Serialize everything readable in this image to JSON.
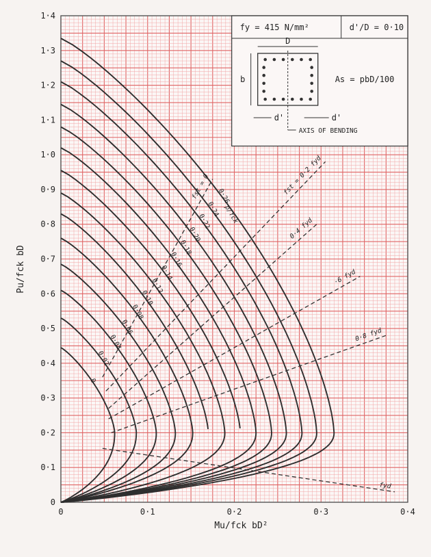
{
  "chart_data": {
    "type": "line",
    "xlabel": "Mu/fck bD²",
    "ylabel": "Pu/fck bD",
    "xlim": [
      0,
      0.4
    ],
    "ylim": [
      0,
      1.4
    ],
    "grid": true,
    "x_ticks": [
      "0",
      "0·1",
      "0·2",
      "0·3",
      "0·4"
    ],
    "y_ticks": [
      "0",
      "0·1",
      "0·2",
      "0·3",
      "0·4",
      "0·5",
      "0·6",
      "0·7",
      "0·8",
      "0·9",
      "1·0",
      "1·1",
      "1·2",
      "1·3",
      "1·4"
    ],
    "curve_family_label": "p/fck",
    "series": [
      {
        "name": "0",
        "y0": 0.445,
        "m_max": 0.062,
        "pb": 0.2
      },
      {
        "name": "0·02",
        "y0": 0.53,
        "m_max": 0.087,
        "pb": 0.2
      },
      {
        "name": "0·04",
        "y0": 0.61,
        "m_max": 0.11,
        "pb": 0.2
      },
      {
        "name": "0·06",
        "y0": 0.685,
        "m_max": 0.132,
        "pb": 0.2
      },
      {
        "name": "0·08",
        "y0": 0.76,
        "m_max": 0.152,
        "pb": 0.2
      },
      {
        "name": "0·10",
        "y0": 0.83,
        "m_max": 0.17,
        "pb": 0.2
      },
      {
        "name": "0·12",
        "y0": 0.89,
        "m_max": 0.189,
        "pb": 0.2
      },
      {
        "name": "0·14",
        "y0": 0.955,
        "m_max": 0.207,
        "pb": 0.2
      },
      {
        "name": "0·16",
        "y0": 1.02,
        "m_max": 0.225,
        "pb": 0.2
      },
      {
        "name": "0·18",
        "y0": 1.08,
        "m_max": 0.243,
        "pb": 0.2
      },
      {
        "name": "0·20",
        "y0": 1.145,
        "m_max": 0.26,
        "pb": 0.2
      },
      {
        "name": "0·22",
        "y0": 1.21,
        "m_max": 0.278,
        "pb": 0.2
      },
      {
        "name": "0·24",
        "y0": 1.27,
        "m_max": 0.295,
        "pb": 0.2
      },
      {
        "name": "0·26",
        "y0": 1.335,
        "m_max": 0.315,
        "pb": 0.2
      }
    ],
    "stress_lines": [
      {
        "name": "fst = 0",
        "from": [
          0.048,
          0.36
        ],
        "to": [
          0.175,
          0.93
        ]
      },
      {
        "name": "fst = 0·2 fyd",
        "from": [
          0.052,
          0.32
        ],
        "to": [
          0.305,
          0.98
        ]
      },
      {
        "name": "0·4 fyd",
        "from": [
          0.055,
          0.27
        ],
        "to": [
          0.295,
          0.8
        ]
      },
      {
        "name": "·6 fyd",
        "from": [
          0.055,
          0.24
        ],
        "to": [
          0.345,
          0.65
        ]
      },
      {
        "name": "0·8 fyd",
        "from": [
          0.058,
          0.2
        ],
        "to": [
          0.375,
          0.48
        ]
      },
      {
        "name": "fyd",
        "from": [
          0.048,
          0.155
        ],
        "to": [
          0.385,
          0.03
        ]
      }
    ],
    "inset": {
      "fy": "fy = 415 N/mm²",
      "dD": "d'/D = 0·10",
      "D": "D",
      "b": "b",
      "As": "As = pbD/100",
      "d1": "d'",
      "d2": "d'",
      "axis": "AXIS OF BENDING"
    }
  },
  "colors": {
    "grid_minor": "#f2a6a6",
    "grid_major": "#e06565",
    "curve": "#2e2e2e",
    "paper": "#fbf7f6",
    "background": "#f7f3f1"
  }
}
